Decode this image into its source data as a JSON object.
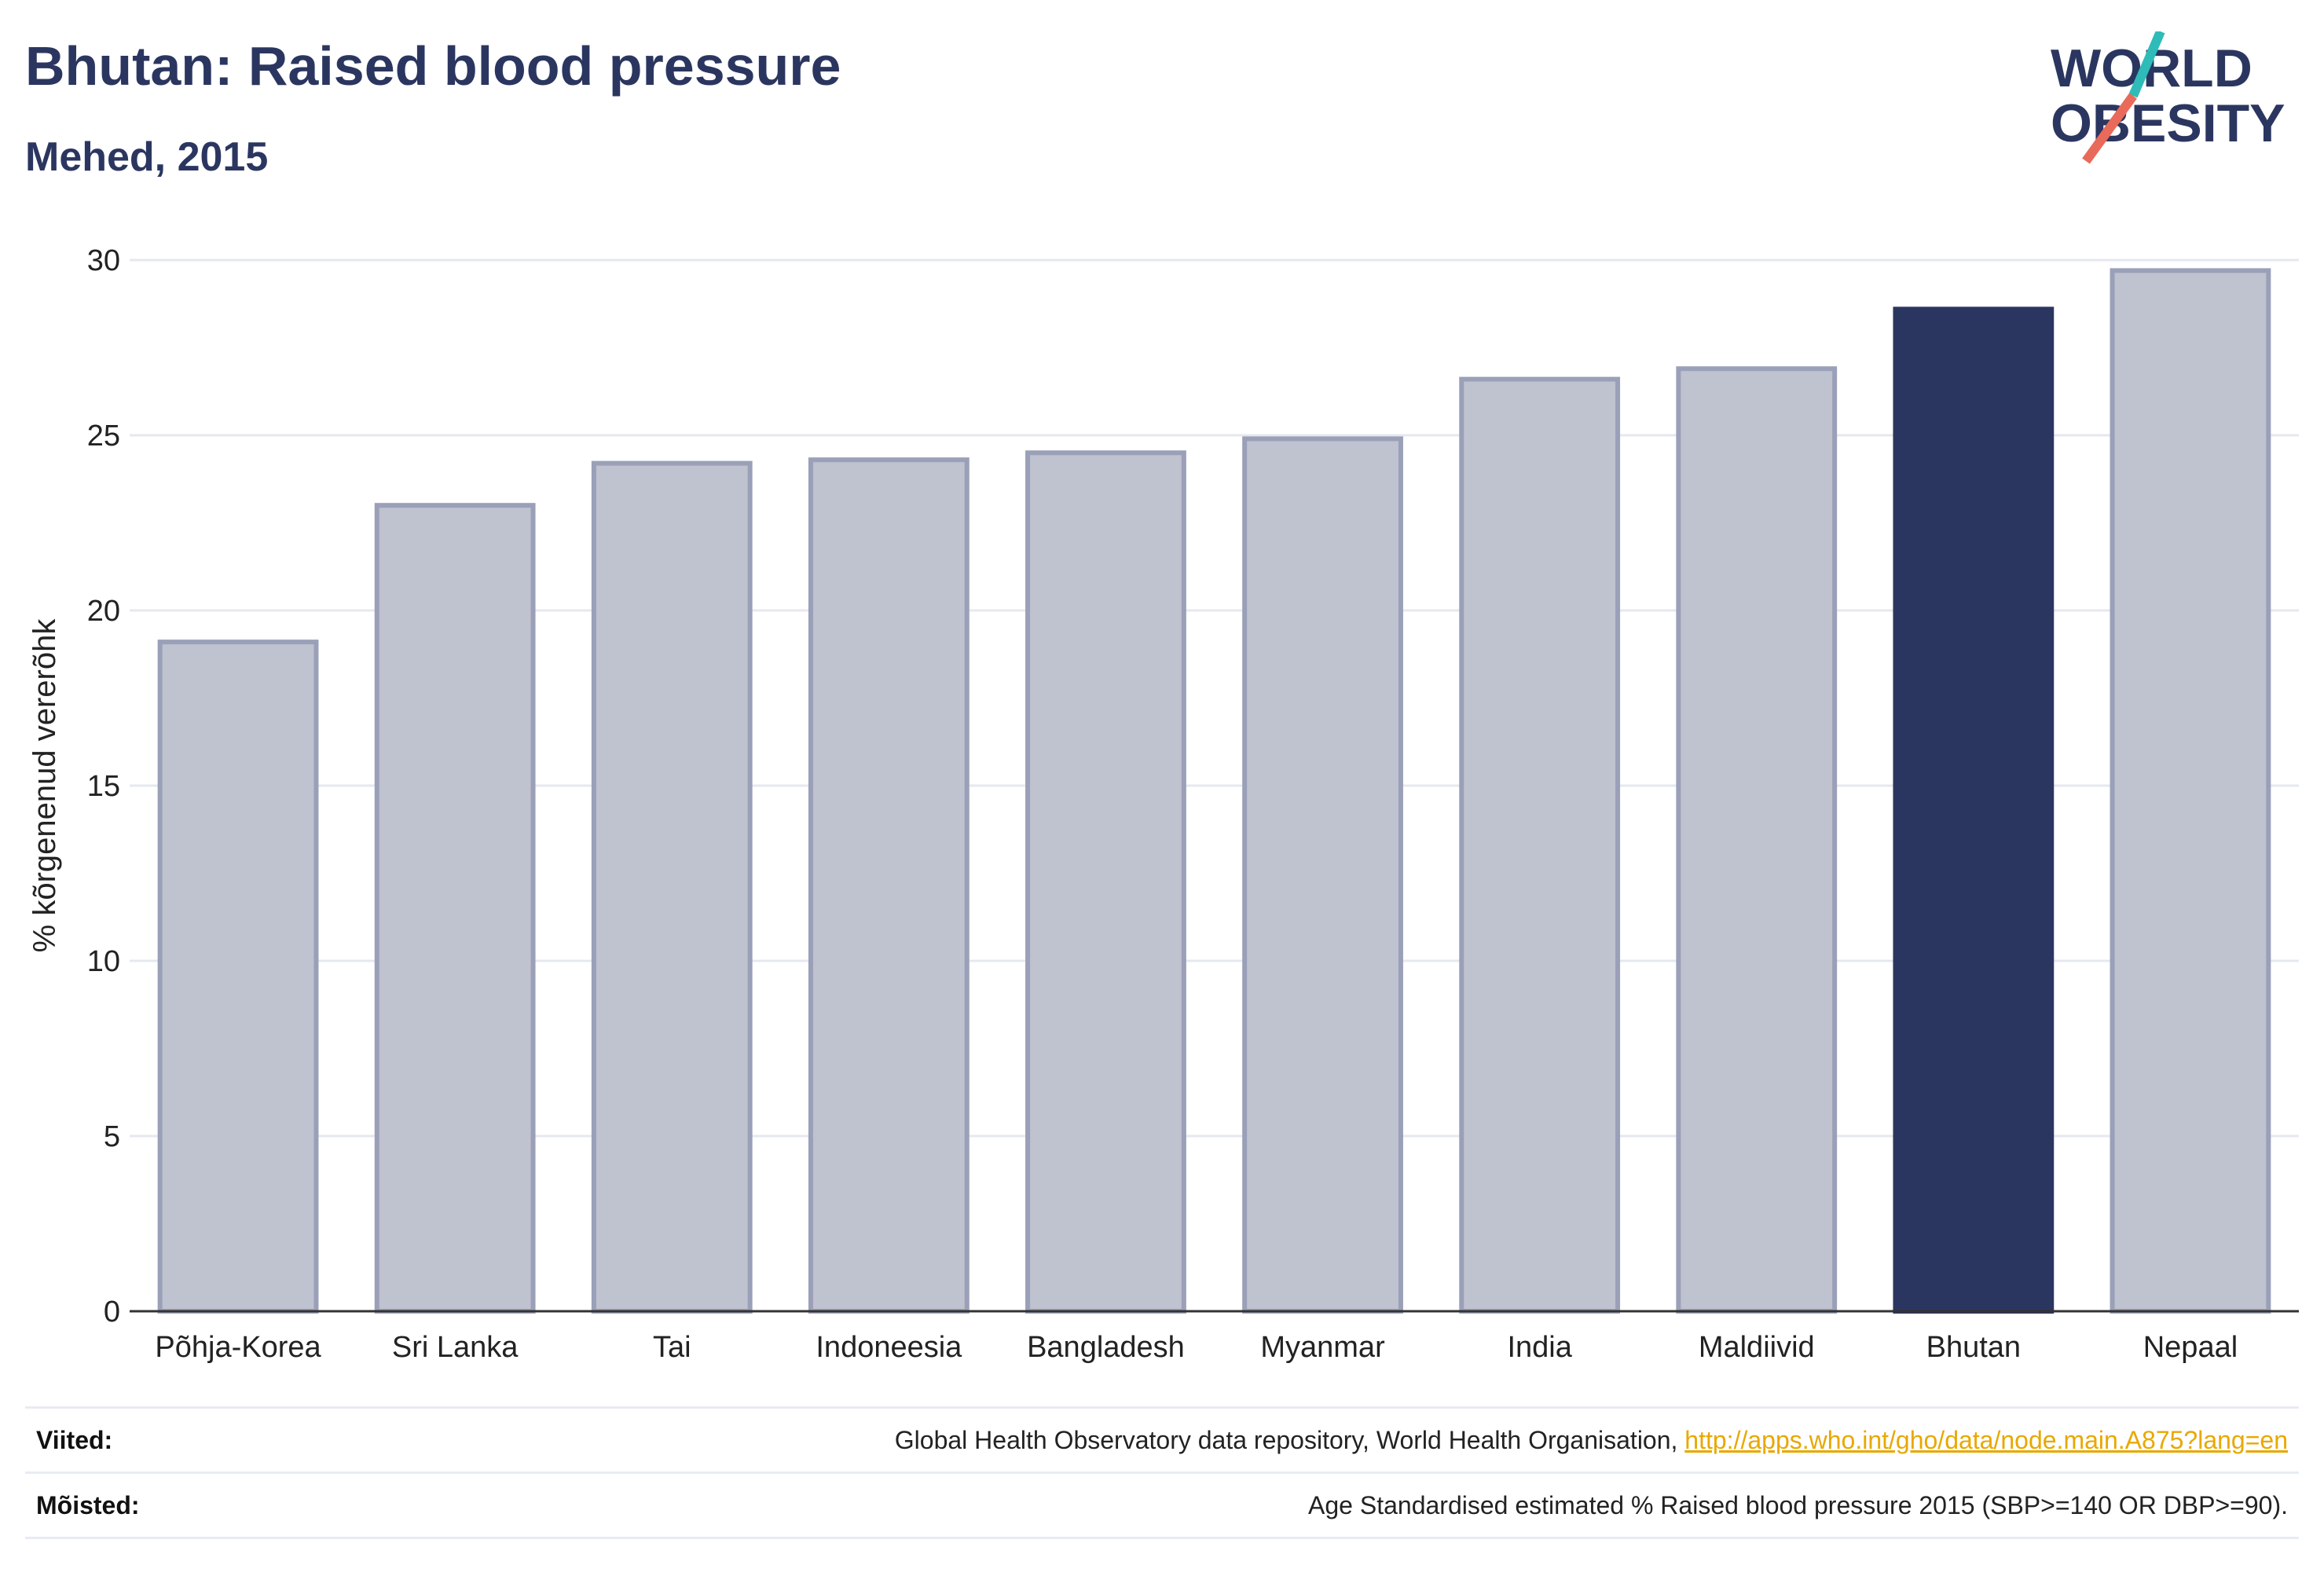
{
  "title": "Bhutan: Raised blood pressure",
  "subtitle": "Mehed, 2015",
  "logo": {
    "line1": "WORLD",
    "line2": "OBESITY"
  },
  "colors": {
    "highlight": "#2b3660",
    "bar": "#bfc2cf",
    "bar_stroke": "#9aa0b8",
    "brand_teal": "#2fbcb8",
    "brand_coral": "#e96a5a"
  },
  "footer": {
    "sources_label": "Viited:",
    "sources_text": "Global Health Observatory data repository, World Health Organisation, ",
    "sources_link": "http://apps.who.int/gho/data/node.main.A875?lang=en",
    "definitions_label": "Mõisted:",
    "definitions_text": "Age Standardised estimated % Raised blood pressure 2015 (SBP>=140 OR DBP>=90)."
  },
  "chart_data": {
    "type": "bar",
    "categories": [
      "Põhja-Korea",
      "Sri Lanka",
      "Tai",
      "Indoneesia",
      "Bangladesh",
      "Myanmar",
      "India",
      "Maldiivid",
      "Bhutan",
      "Nepaal"
    ],
    "values": [
      19.1,
      23.0,
      24.2,
      24.3,
      24.5,
      24.9,
      26.6,
      26.9,
      28.6,
      29.7
    ],
    "highlight": "Bhutan",
    "ylabel": "% kõrgenenud vererõhk",
    "xlabel": "",
    "ylim": [
      0,
      30
    ],
    "yticks": [
      0,
      5,
      10,
      15,
      20,
      25,
      30
    ],
    "grid": true
  }
}
